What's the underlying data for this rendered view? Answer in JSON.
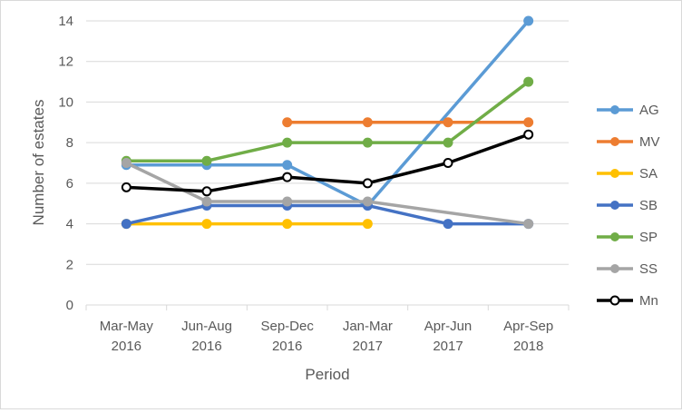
{
  "chart_data": {
    "type": "line",
    "title": "",
    "xlabel": "Period",
    "ylabel": "Number of estates",
    "ylim": [
      0,
      14
    ],
    "yticks": [
      0,
      2,
      4,
      6,
      8,
      10,
      12,
      14
    ],
    "grid": "horizontal",
    "legend": "right",
    "categories": [
      [
        "Mar-May",
        "2016"
      ],
      [
        "Jun-Aug",
        "2016"
      ],
      [
        "Sep-Dec",
        "2016"
      ],
      [
        "Jan-Mar",
        "2017"
      ],
      [
        "Apr-Jun",
        "2017"
      ],
      [
        "Apr-Sep",
        "2018"
      ]
    ],
    "series": [
      {
        "name": "AG",
        "color": "#5b9bd5",
        "marker": "filled",
        "values": [
          6.9,
          6.9,
          6.9,
          4.9,
          null,
          14
        ]
      },
      {
        "name": "MV",
        "color": "#ed7d31",
        "marker": "filled",
        "values": [
          null,
          null,
          9,
          9,
          9,
          9
        ]
      },
      {
        "name": "SA",
        "color": "#ffc000",
        "marker": "filled",
        "values": [
          4,
          4,
          4,
          4,
          null,
          null
        ]
      },
      {
        "name": "SB",
        "color": "#4472c4",
        "marker": "filled",
        "values": [
          4,
          4.9,
          4.9,
          4.9,
          4,
          4
        ]
      },
      {
        "name": "SP",
        "color": "#70ad47",
        "marker": "filled",
        "values": [
          7.1,
          7.1,
          8,
          8,
          8,
          11
        ]
      },
      {
        "name": "SS",
        "color": "#a5a5a5",
        "marker": "filled",
        "values": [
          7,
          5.1,
          5.1,
          5.1,
          null,
          4
        ]
      },
      {
        "name": "Mn",
        "color": "#000000",
        "marker": "open",
        "values": [
          5.8,
          5.6,
          6.3,
          6,
          7,
          8.4
        ]
      }
    ]
  }
}
